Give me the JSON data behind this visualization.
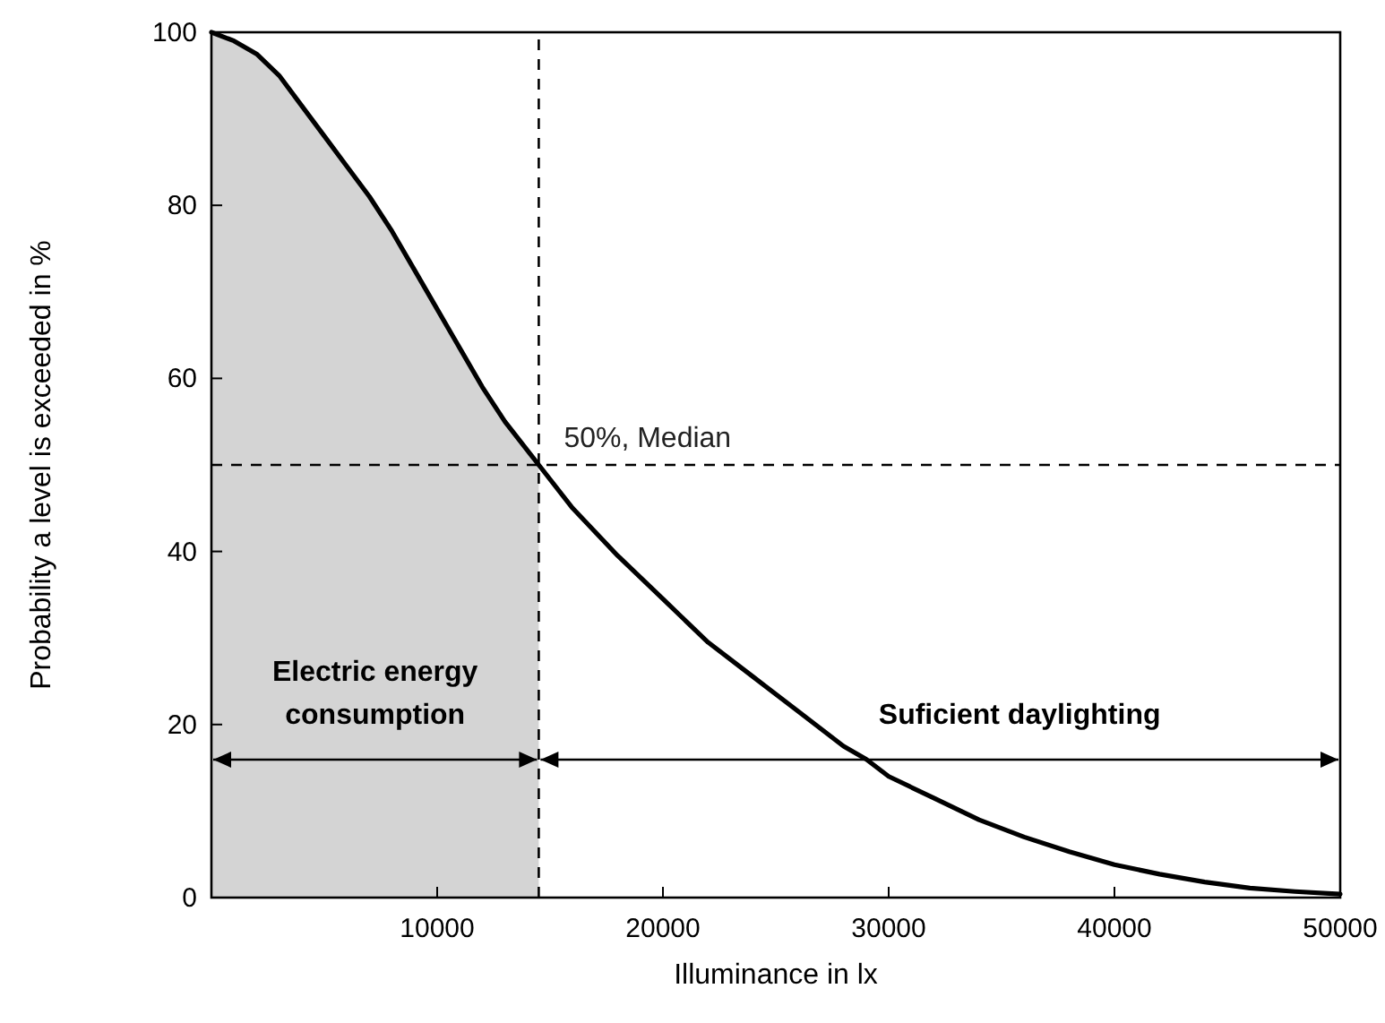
{
  "chart_data": {
    "type": "line",
    "xlabel": "Illuminance in lx",
    "ylabel": "Probability a level is exceeded in %",
    "xlim": [
      0,
      50000
    ],
    "xticks": [
      {
        "value": 0,
        "label": null
      },
      10000,
      20000,
      30000,
      40000,
      50000
    ],
    "ylim": [
      0,
      100
    ],
    "yticks": [
      0,
      20,
      40,
      60,
      80,
      100
    ],
    "grid": false,
    "marker": "none",
    "line_style": "solid",
    "series": [
      {
        "type": "area",
        "color": "#d4d4d4",
        "x": [
          0,
          1000,
          2000,
          3000,
          4000,
          5000,
          6000,
          7000,
          8000,
          9000,
          10000,
          11000,
          12000,
          13000,
          14500
        ],
        "values": [
          100,
          99,
          97.5,
          95,
          91.5,
          88,
          84.5,
          81,
          77,
          72.5,
          68,
          63.5,
          59,
          55,
          50
        ]
      },
      {
        "color": "#000000",
        "x": [
          0,
          1000,
          2000,
          3000,
          4000,
          5000,
          6000,
          7000,
          8000,
          9000,
          10000,
          11000,
          12000,
          13000,
          14500,
          16000,
          18000,
          20000,
          22000,
          24000,
          26000,
          28000,
          29000,
          30000,
          32000,
          34000,
          36000,
          38000,
          40000,
          42000,
          44000,
          46000,
          48000,
          50000
        ],
        "values": [
          100,
          99,
          97.5,
          95,
          91.5,
          88,
          84.5,
          81,
          77,
          72.5,
          68,
          63.5,
          59,
          55,
          50,
          45,
          39.5,
          34.5,
          29.5,
          25.5,
          21.5,
          17.5,
          16,
          14,
          11.5,
          9,
          7,
          5.3,
          3.8,
          2.7,
          1.8,
          1.1,
          0.7,
          0.4
        ]
      }
    ],
    "ref_lines": [
      {
        "axis": "x",
        "value": 14500,
        "label": null,
        "line_style": "dashed",
        "color": "#000000"
      },
      {
        "axis": "y",
        "value": 50,
        "label": "50%, Median",
        "line_style": "dashed",
        "color": "#000000"
      }
    ],
    "annotations": [
      "Electric energy\nconsumption",
      "Suficient daylighting"
    ]
  }
}
